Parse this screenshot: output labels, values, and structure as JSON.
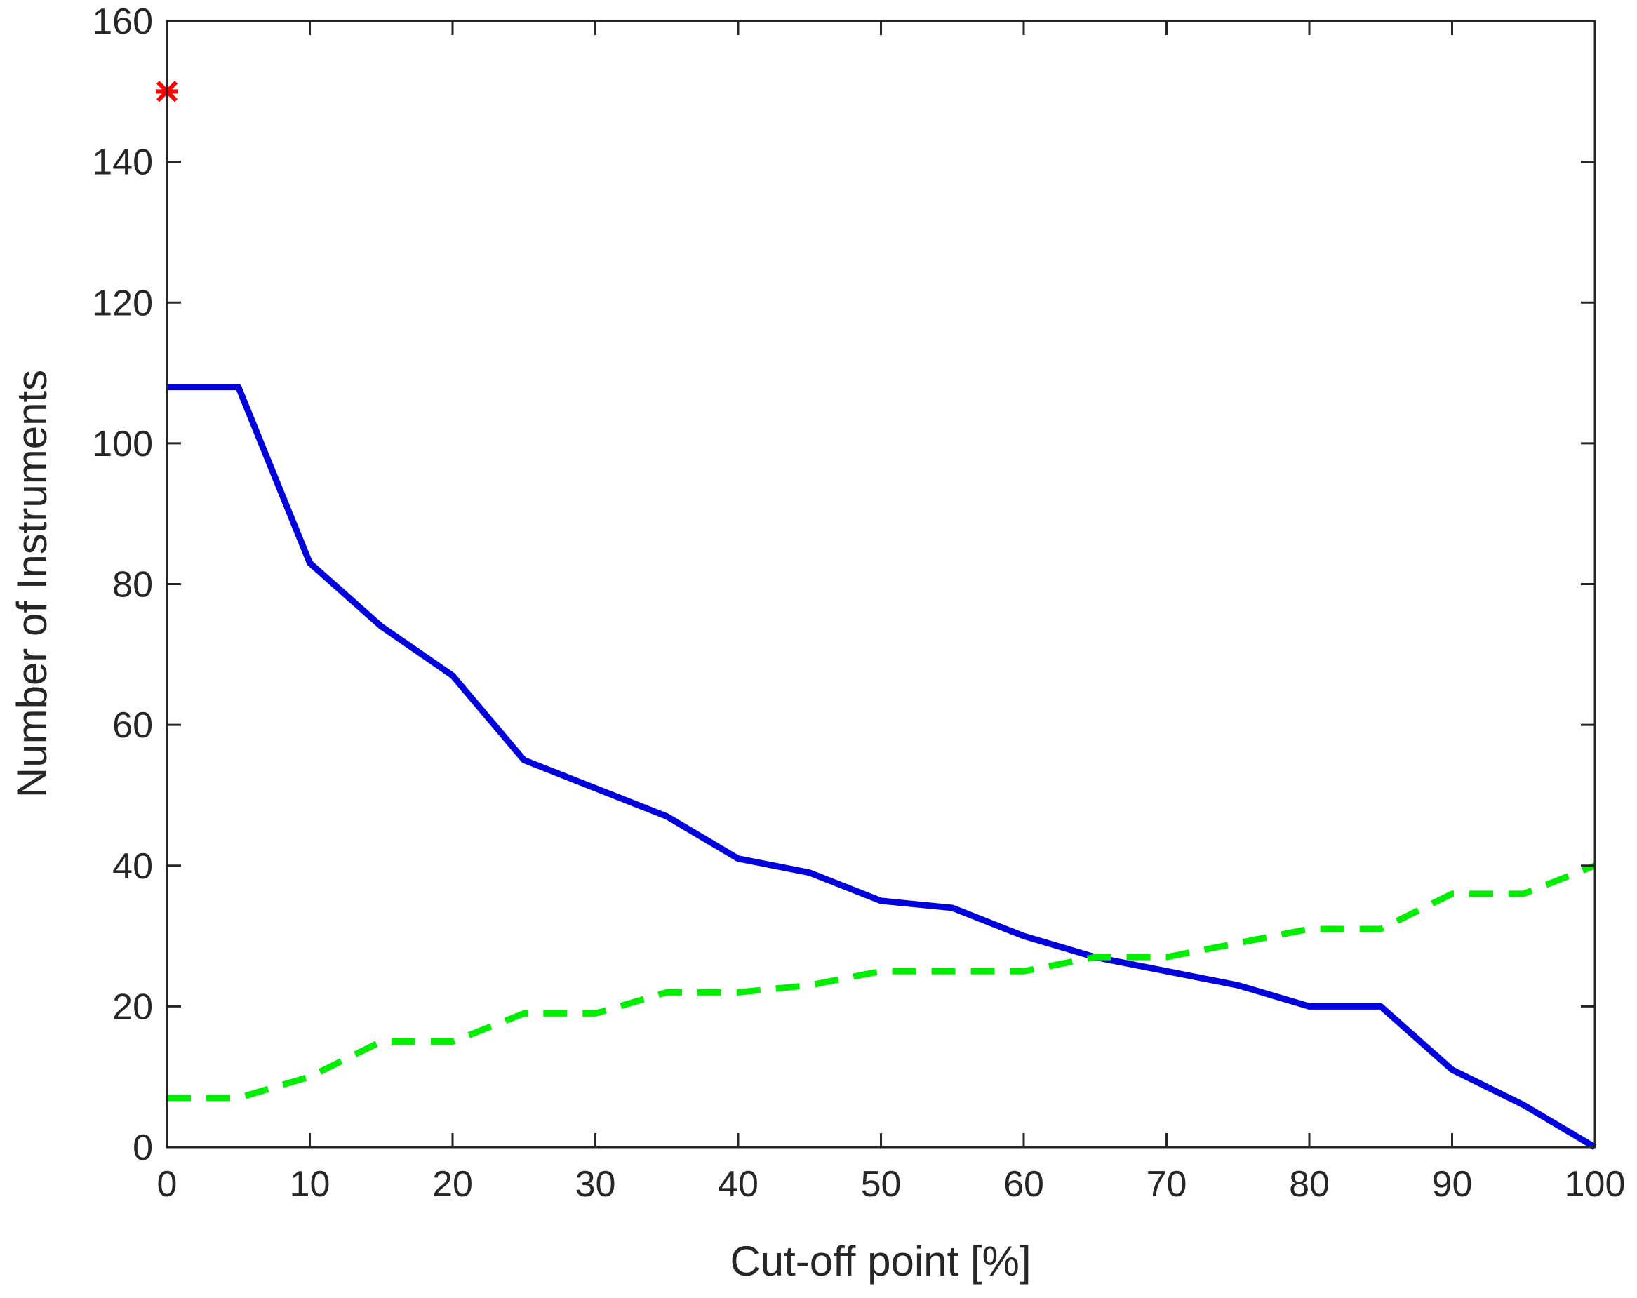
{
  "chart_data": {
    "type": "line",
    "title": "",
    "xlabel": "Cut-off point [%]",
    "ylabel": "Number of Instruments",
    "xlim": [
      0,
      100
    ],
    "ylim": [
      0,
      160
    ],
    "xticks": [
      0,
      10,
      20,
      30,
      40,
      50,
      60,
      70,
      80,
      90,
      100
    ],
    "yticks": [
      0,
      20,
      40,
      60,
      80,
      100,
      120,
      140,
      160
    ],
    "grid": false,
    "legend": "none",
    "x": [
      0,
      5,
      10,
      15,
      20,
      25,
      30,
      35,
      40,
      45,
      50,
      55,
      60,
      65,
      70,
      75,
      80,
      85,
      90,
      95,
      100
    ],
    "series": [
      {
        "color": "#0000dd",
        "line_style": "solid",
        "values": [
          108,
          108,
          83,
          74,
          67,
          55,
          51,
          47,
          41,
          39,
          35,
          34,
          30,
          27,
          25,
          23,
          20,
          20,
          11,
          6,
          0
        ]
      },
      {
        "color": "#00ee00",
        "line_style": "dashed",
        "values": [
          7,
          7,
          10,
          15,
          15,
          19,
          19,
          22,
          22,
          23,
          25,
          25,
          25,
          27,
          27,
          29,
          31,
          31,
          36,
          36,
          40
        ]
      }
    ],
    "markers": [
      {
        "x": 0,
        "y": 150,
        "color": "#ff0000",
        "symbol": "asterisk"
      }
    ]
  }
}
